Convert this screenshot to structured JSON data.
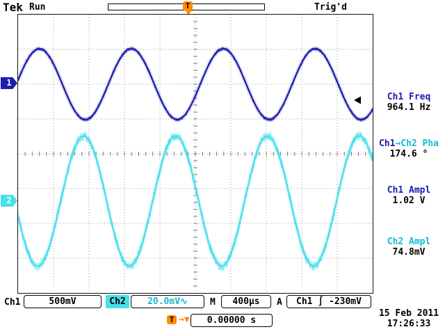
{
  "colors": {
    "ch1": "#1c1cb0",
    "ch2": "#45e0ea",
    "ch1_text": "#1c1cb0",
    "ch2_text": "#14bcd0",
    "trigger": "#ff8c00",
    "grid": "#9a9a9a"
  },
  "header": {
    "logo": "Tek",
    "acq_status": "Run",
    "trigger_status": "Trig'd",
    "trigger_marker": "T"
  },
  "channel_markers": {
    "ch1": "1",
    "ch2": "2"
  },
  "measurements": [
    {
      "parts": [
        {
          "t": "Ch1 Freq",
          "c": "ch1"
        }
      ],
      "value": "964.1 Hz"
    },
    {
      "parts": [
        {
          "t": "Ch1",
          "c": "ch1"
        },
        {
          "t": "→",
          "c": "ch2"
        },
        {
          "t": "Ch2 Pha",
          "c": "ch2"
        }
      ],
      "value": "174.6 °"
    },
    {
      "parts": [
        {
          "t": "Ch1 Ampl",
          "c": "ch1"
        }
      ],
      "value": "1.02 V"
    },
    {
      "parts": [
        {
          "t": "Ch2 Ampl",
          "c": "ch2"
        }
      ],
      "value": "74.8mV"
    }
  ],
  "status_bar": {
    "ch1_label": "Ch1",
    "ch1_scale": "500mV",
    "ch2_label": "Ch2",
    "ch2_scale": "20.0mV∿",
    "timebase_label": "M",
    "timebase": "400µs",
    "trigger_source_prefix": "A",
    "trigger_source": "Ch1",
    "trigger_slope": "∫",
    "trigger_level": "-230mV"
  },
  "footer": {
    "trigger_marker": "T",
    "arrow": "→▼",
    "position": "0.00000 s",
    "date": "15 Feb  2011",
    "time": "17:26:33"
  },
  "chart_data": {
    "type": "line",
    "time_per_div_us": 400,
    "horizontal_divisions": 10,
    "vertical_divisions": 8,
    "series": [
      {
        "name": "Ch1",
        "color": "#1c1cb0",
        "freq_hz": 964.1,
        "volts_per_div": 0.5,
        "amplitude_pp_v": 1.02,
        "center_div_from_top": 2.0,
        "first_peak_div": 0.6,
        "noise_div": 0.05
      },
      {
        "name": "Ch2",
        "color": "#45e0ea",
        "freq_hz": 964.1,
        "volts_per_div": 0.02,
        "amplitude_pp_v": 0.0748,
        "center_div_from_top": 5.36,
        "first_peak_div": 1.85,
        "noise_div": 0.14
      }
    ],
    "trigger": {
      "source": "Ch1",
      "slope": "rising",
      "level_v": -0.23,
      "position_s": "0.00000 s"
    }
  }
}
